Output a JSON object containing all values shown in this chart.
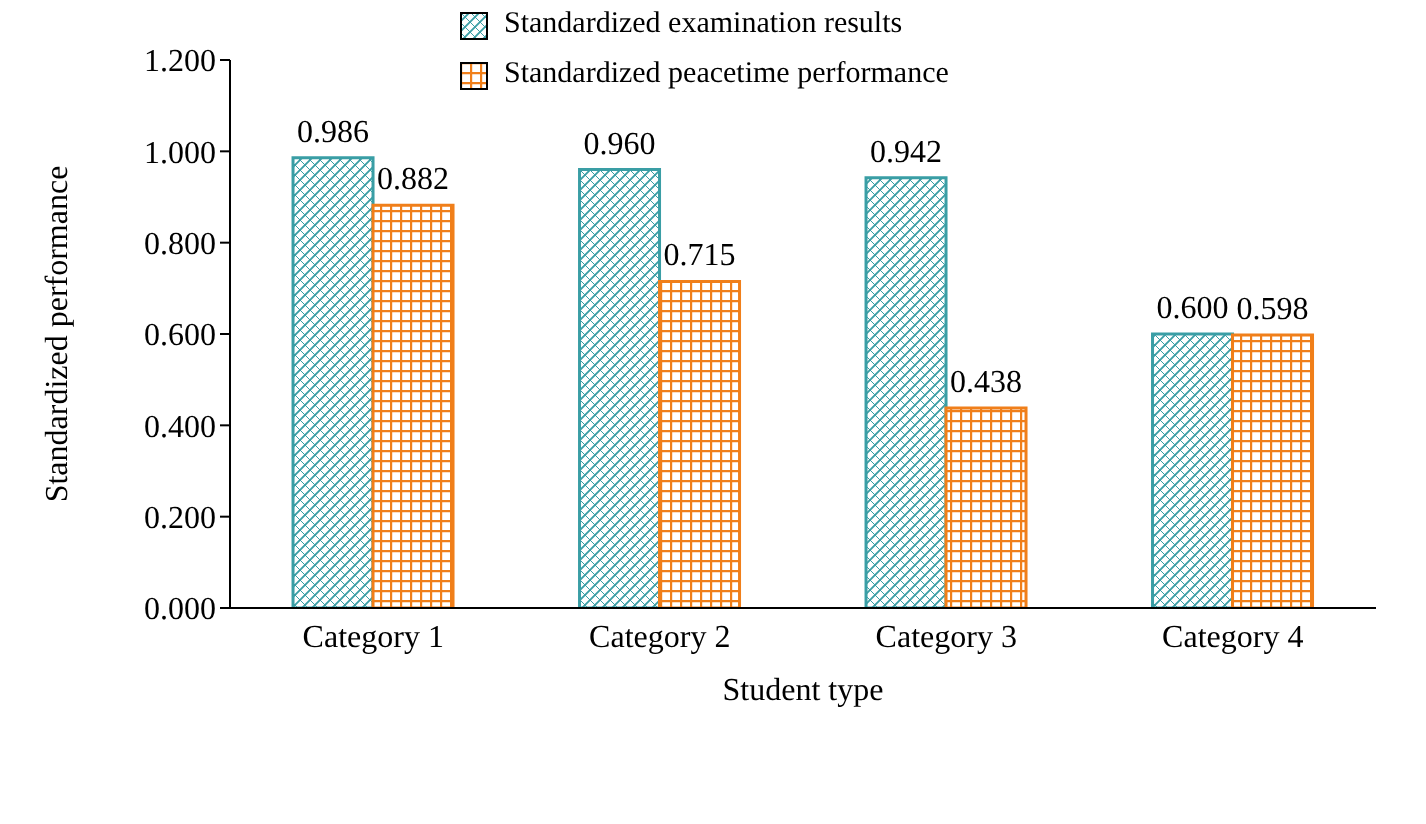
{
  "chart_data": {
    "type": "bar",
    "xlabel": "Student type",
    "ylabel": "Standardized performance",
    "categories": [
      "Category 1",
      "Category 2",
      "Category 3",
      "Category 4"
    ],
    "series": [
      {
        "name": "Standardized examination results",
        "color": "#3a9ea5",
        "values": [
          0.986,
          0.96,
          0.942,
          0.6
        ],
        "value_labels": [
          "0.986",
          "0.960",
          "0.942",
          "0.600"
        ]
      },
      {
        "name": "Standardized peacetime performance",
        "color": "#f07f1a",
        "values": [
          0.882,
          0.715,
          0.438,
          0.598
        ],
        "value_labels": [
          "0.882",
          "0.715",
          "0.438",
          "0.598"
        ]
      }
    ],
    "ylim": [
      0,
      1.2
    ],
    "yticks": [
      {
        "value": 0,
        "label": "0.000"
      },
      {
        "value": 0.2,
        "label": "0.200"
      },
      {
        "value": 0.4,
        "label": "0.400"
      },
      {
        "value": 0.6,
        "label": "0.600"
      },
      {
        "value": 0.8,
        "label": "0.800"
      },
      {
        "value": 1.0,
        "label": "1.000"
      },
      {
        "value": 1.2,
        "label": "1.200"
      }
    ],
    "grid": false,
    "legend": "top"
  }
}
